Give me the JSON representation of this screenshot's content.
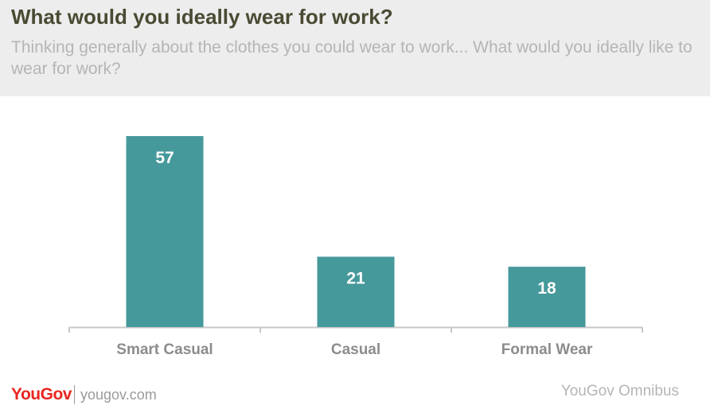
{
  "header": {
    "title": "What would you ideally wear for work?",
    "subtitle": "Thinking generally about the clothes you could wear to work... What would you ideally like to wear for work?"
  },
  "footer": {
    "logo": "YouGov",
    "site": "yougov.com",
    "source": "YouGov Omnibus"
  },
  "colors": {
    "bar": "#46999b",
    "label": "#ffffff",
    "category": "#8c8c8c",
    "axis": "#c8c8c8"
  },
  "chart_data": {
    "type": "bar",
    "categories": [
      "Smart Casual",
      "Casual",
      "Formal Wear"
    ],
    "values": [
      57,
      21,
      18
    ],
    "data_labels": [
      "57",
      "21",
      "18"
    ],
    "title": "What would you ideally wear for work?",
    "xlabel": "",
    "ylabel": "",
    "ylim": [
      0,
      57
    ],
    "grid": false,
    "legend": "none"
  }
}
